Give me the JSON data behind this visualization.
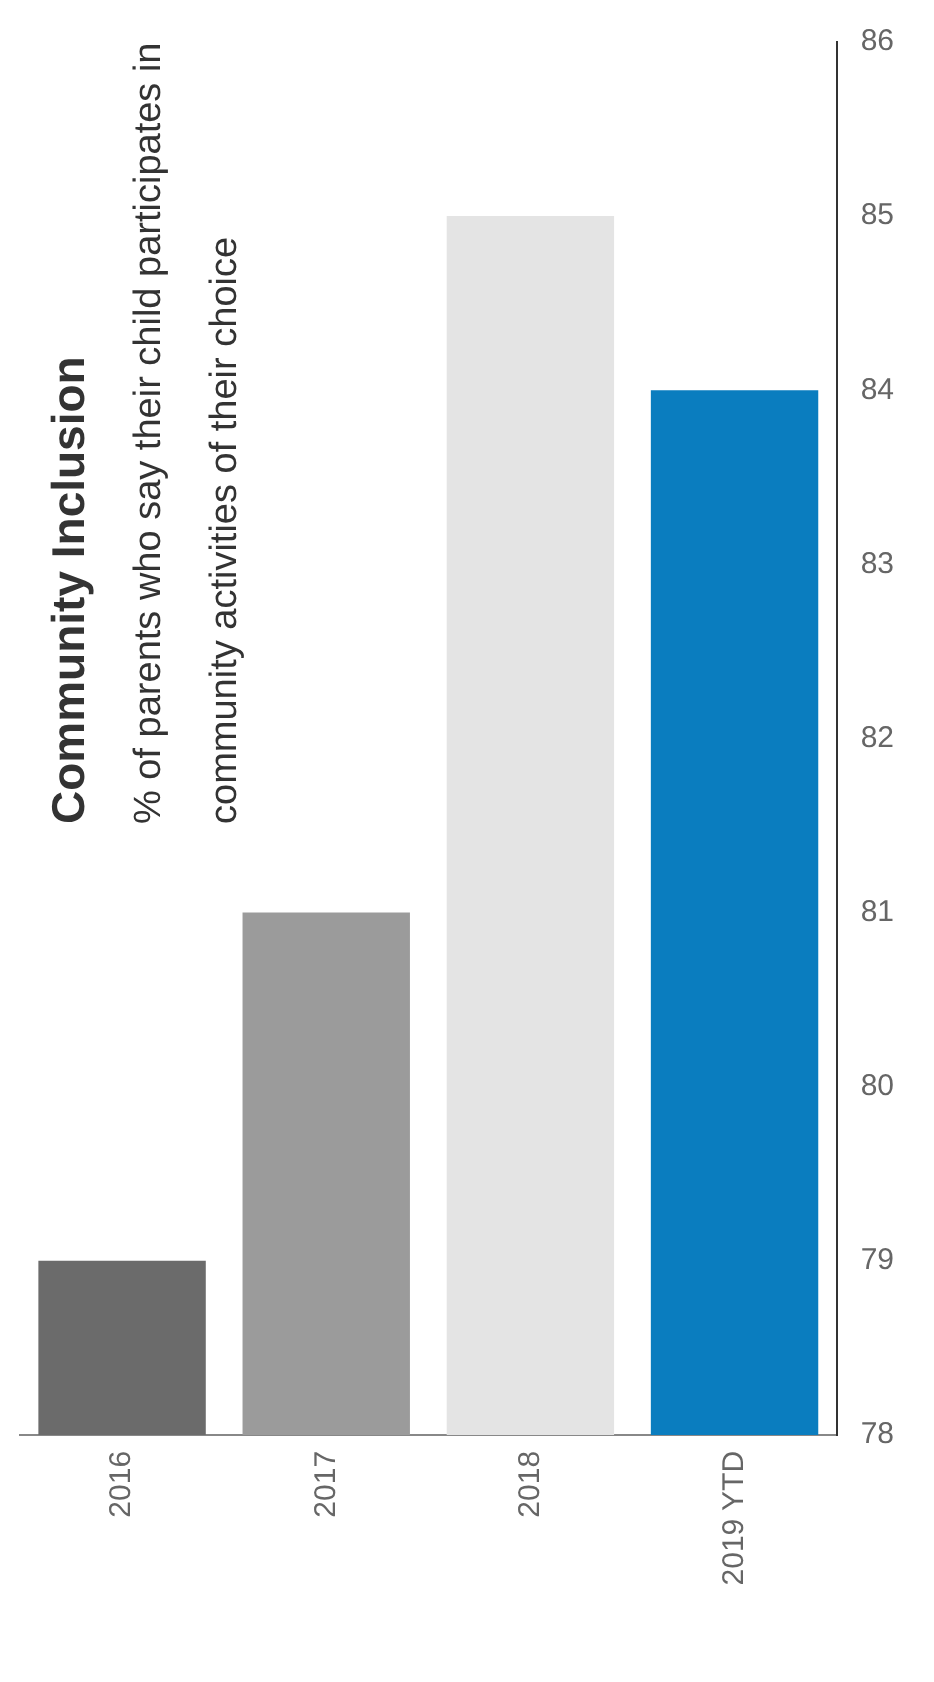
{
  "chart_data": {
    "type": "bar",
    "title": "Community Inclusion",
    "subtitle": "% of parents who say their child participates in community activities of their choice",
    "categories": [
      "2016",
      "2017",
      "2018",
      "2019 YTD"
    ],
    "values": [
      79,
      81,
      85,
      84
    ],
    "colors": [
      "#6b6b6b",
      "#9b9b9b",
      "#e4e4e4",
      "#0a7dbf"
    ],
    "ylim": [
      78,
      86
    ],
    "yticks": [
      78,
      79,
      80,
      81,
      82,
      83,
      84,
      85,
      86
    ],
    "grid": false,
    "legend": false
  }
}
